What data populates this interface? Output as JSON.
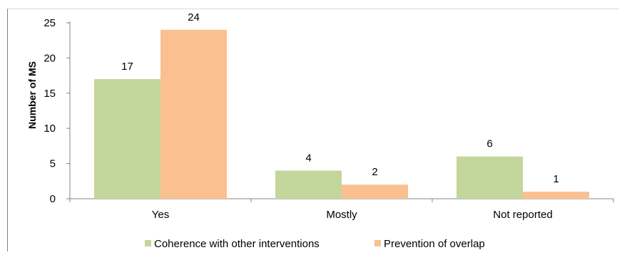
{
  "header_strip": {
    "text": ""
  },
  "chart_data": {
    "type": "bar",
    "ylabel": "Number of MS",
    "xlabel": "",
    "ylim": [
      0,
      25
    ],
    "yticks": [
      0,
      5,
      10,
      15,
      20,
      25
    ],
    "grid": false,
    "legend_position": "bottom",
    "categories": [
      "Yes",
      "Mostly",
      "Not reported"
    ],
    "series": [
      {
        "name": "Coherence with other interventions",
        "color": "#c3d69b",
        "values": [
          17,
          4,
          6
        ]
      },
      {
        "name": "Prevention of overlap",
        "color": "#fac090",
        "values": [
          24,
          2,
          1
        ]
      }
    ]
  }
}
